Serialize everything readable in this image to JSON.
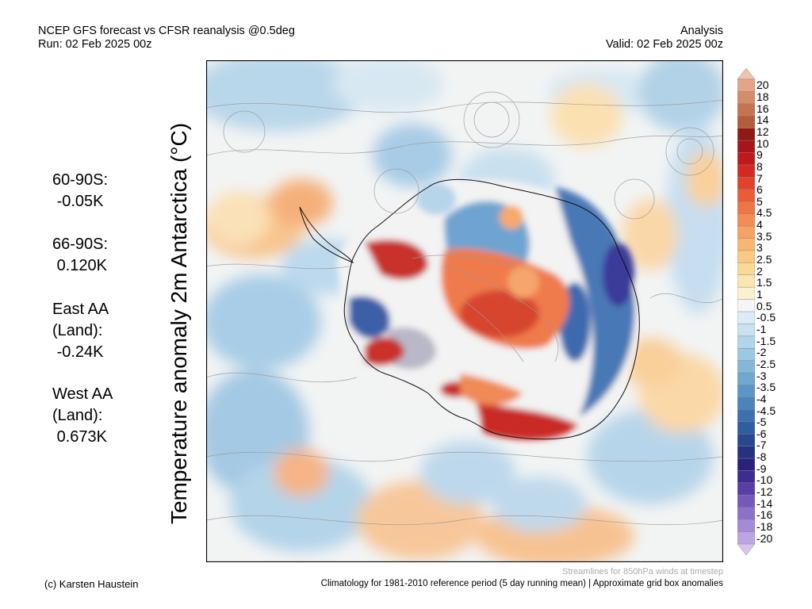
{
  "header": {
    "title": "NCEP GFS forecast vs CFSR reanalysis @0.5deg",
    "run": "Run: 02 Feb 2025 00z",
    "mode": "Analysis",
    "valid": "Valid: 02 Feb 2025 00z"
  },
  "vertical_title": "Temperature anomaly 2m Antarctica (°C)",
  "stats": [
    {
      "label": "60-90S:",
      "value": "-0.05K"
    },
    {
      "label": "66-90S:",
      "value": "0.120K"
    },
    {
      "label": "East AA\n(Land):",
      "value": "-0.24K"
    },
    {
      "label": "West AA\n(Land):",
      "value": "0.673K"
    }
  ],
  "colorbar": {
    "ticks": [
      "20",
      "18",
      "16",
      "14",
      "12",
      "10",
      "9",
      "8",
      "7",
      "6",
      "5",
      "4.5",
      "4",
      "3.5",
      "3",
      "2.5",
      "2",
      "1.5",
      "1",
      "0.5",
      "-0.5",
      "-1",
      "-1.5",
      "-2",
      "-2.5",
      "-3",
      "-3.5",
      "-4",
      "-4.5",
      "-5",
      "-6",
      "-7",
      "-8",
      "-9",
      "-10",
      "-12",
      "-14",
      "-16",
      "-18",
      "-20"
    ],
    "colors": [
      "#f2c2aa",
      "#e3a585",
      "#d48d6b",
      "#c37552",
      "#b35d3c",
      "#8f1a14",
      "#a8141a",
      "#c0191c",
      "#d22a22",
      "#e1422c",
      "#ec5b38",
      "#f17445",
      "#f48c55",
      "#f6a264",
      "#f8b673",
      "#f9c983",
      "#fad997",
      "#fbe5b0",
      "#fcf1cf",
      "#f5f5f5",
      "#dcecf7",
      "#c8e2f1",
      "#b1d5ea",
      "#9bc8e2",
      "#84b8da",
      "#6fa8d1",
      "#5b96c6",
      "#4a84bb",
      "#3c71ae",
      "#2f5ea0",
      "#28478f",
      "#25327f",
      "#2a2178",
      "#3e2c8e",
      "#5a3ea6",
      "#7657ba",
      "#8e70c8",
      "#a68ad6",
      "#bea5e2",
      "#d6c3ee"
    ]
  },
  "footer": {
    "streamline_note": "Streamlines for 850hPa winds at timestep",
    "copyright": "(c) Karsten Haustein",
    "climatology": "Climatology for 1981-2010 reference period (5 day running mean) | Approximate grid box anomalies"
  }
}
